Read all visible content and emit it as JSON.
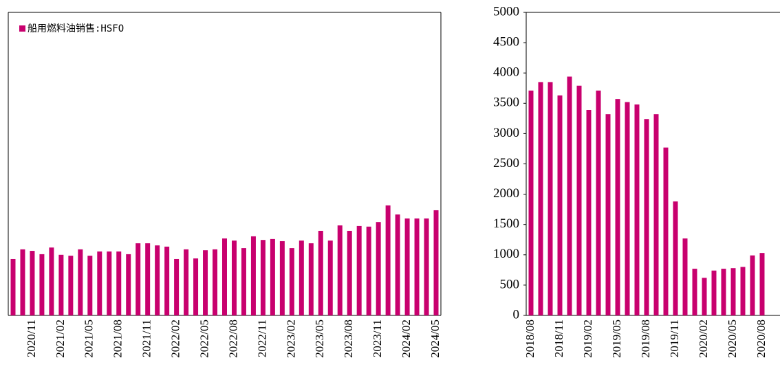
{
  "chart_data": [
    {
      "type": "bar",
      "legend": "top-left",
      "categories": [
        null,
        null,
        "2020/11",
        null,
        null,
        "2021/02",
        null,
        null,
        "2021/05",
        null,
        null,
        "2021/08",
        null,
        null,
        "2021/11",
        null,
        null,
        "2022/02",
        null,
        null,
        "2022/05",
        null,
        null,
        "2022/08",
        null,
        null,
        "2022/11",
        null,
        null,
        "2023/02",
        null,
        null,
        "2023/05",
        null,
        null,
        "2023/08",
        null,
        null,
        "2023/11",
        null,
        null,
        "2024/02",
        null,
        null,
        "2024/05"
      ],
      "series": [
        {
          "name": "船用燃料油销售:HSFO",
          "color": "#c8006e",
          "values": [
            930,
            1090,
            1065,
            1010,
            1120,
            1000,
            985,
            1090,
            985,
            1055,
            1055,
            1055,
            1010,
            1190,
            1190,
            1155,
            1135,
            930,
            1090,
            940,
            1075,
            1090,
            1270,
            1235,
            1110,
            1305,
            1245,
            1260,
            1225,
            1110,
            1235,
            1190,
            1395,
            1235,
            1485,
            1395,
            1475,
            1465,
            1540,
            1815,
            1665,
            1600,
            1600,
            1600,
            1735
          ]
        }
      ],
      "ylim": [
        0,
        5000
      ]
    },
    {
      "type": "bar",
      "categories": [
        "2018/08",
        null,
        null,
        "2018/11",
        null,
        null,
        "2019/02",
        null,
        null,
        "2019/05",
        null,
        null,
        "2019/08",
        null,
        null,
        "2019/11",
        null,
        null,
        "2020/02",
        null,
        null,
        "2020/05",
        null,
        null,
        "2020/08"
      ],
      "series": [
        {
          "color": "#c8006e",
          "values": [
            3710,
            3850,
            3850,
            3630,
            3940,
            3790,
            3390,
            3710,
            3320,
            3570,
            3520,
            3480,
            3240,
            3320,
            2770,
            1880,
            1270,
            770,
            620,
            740,
            770,
            780,
            800,
            990,
            1030
          ]
        }
      ],
      "ylim": [
        0,
        5000
      ],
      "yticks": [
        0,
        500,
        1000,
        1500,
        2000,
        2500,
        3000,
        3500,
        4000,
        4500,
        5000
      ]
    }
  ]
}
